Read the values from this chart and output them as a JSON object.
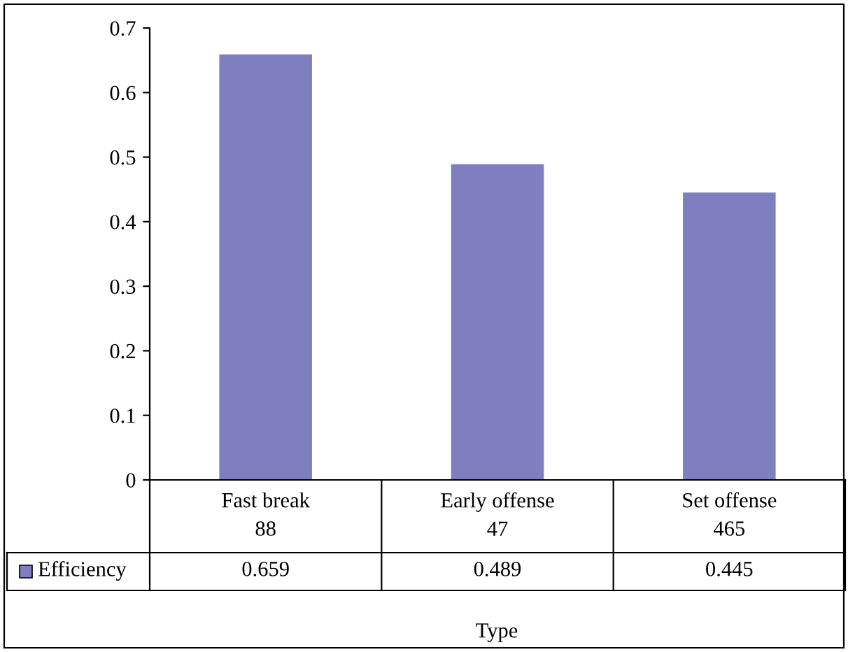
{
  "chart_data": {
    "type": "bar",
    "xlabel": "Type",
    "categories": [
      "Fast break\n88",
      "Early offense\n47",
      "Set offense\n465"
    ],
    "series": [
      {
        "name": "Efficiency",
        "color": "#7f7fbf",
        "values": [
          0.659,
          0.489,
          0.445
        ]
      }
    ],
    "ylim": [
      0,
      0.7
    ],
    "yticks": [
      0,
      0.1,
      0.2,
      0.3,
      0.4,
      0.5,
      0.6,
      0.7
    ],
    "data_labels": true,
    "legend": "bottom left",
    "grid": false
  }
}
